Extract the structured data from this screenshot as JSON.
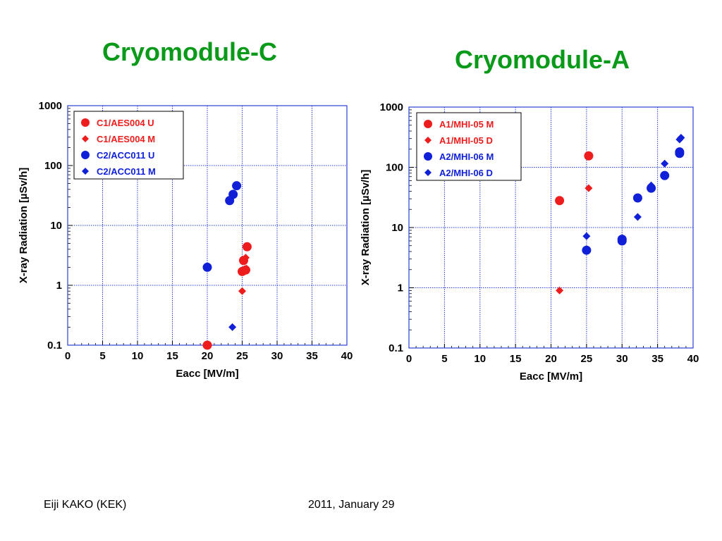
{
  "slide": {
    "title_left": "Cryomodule-C",
    "title_right": "Cryomodule-A",
    "footer_left": "Eiji KAKO (KEK)",
    "footer_right": "2011, January 29"
  },
  "colors": {
    "title": "#0a9a19",
    "red_series": "#ee1c1c",
    "blue_series": "#1020d8",
    "grid": "#2b3fd6"
  },
  "chart_data": [
    {
      "type": "scatter",
      "title": "Cryomodule-C",
      "xlabel": "Eacc  [MV/m]",
      "ylabel": "X-ray Radiation  [µSv/h]",
      "xlim": [
        0,
        40
      ],
      "ylim": [
        0.1,
        1000
      ],
      "yscale": "log",
      "xticks": [
        "0",
        "5",
        "10",
        "15",
        "20",
        "25",
        "30",
        "35",
        "40"
      ],
      "yticks": [
        "0.1",
        "1",
        "10",
        "100",
        "1000"
      ],
      "grid": true,
      "legend_position": "top-left",
      "series": [
        {
          "name": "C1/AES004 U",
          "marker": "circle",
          "color": "#ee1c1c",
          "points": [
            [
              20.0,
              0.1
            ],
            [
              25.0,
              1.7
            ],
            [
              25.2,
              2.6
            ],
            [
              25.5,
              1.8
            ],
            [
              25.7,
              4.4
            ]
          ]
        },
        {
          "name": "C1/AES004 M",
          "marker": "diamond",
          "color": "#ee1c1c",
          "points": [
            [
              25.0,
              0.8
            ],
            [
              25.5,
              2.9
            ],
            [
              25.6,
              1.9
            ]
          ]
        },
        {
          "name": "C2/ACC011 U",
          "marker": "circle",
          "color": "#1020d8",
          "points": [
            [
              20.0,
              2.0
            ],
            [
              23.2,
              26
            ],
            [
              23.7,
              33
            ],
            [
              24.2,
              46
            ]
          ]
        },
        {
          "name": "C2/ACC011 M",
          "marker": "diamond",
          "color": "#1020d8",
          "points": [
            [
              23.6,
              0.2
            ]
          ]
        }
      ]
    },
    {
      "type": "scatter",
      "title": "Cryomodule-A",
      "xlabel": "Eacc  [MV/m]",
      "ylabel": "X-ray Radiation  [µSv/h]",
      "xlim": [
        0,
        40
      ],
      "ylim": [
        0.1,
        1000
      ],
      "yscale": "log",
      "xticks": [
        "0",
        "5",
        "10",
        "15",
        "20",
        "25",
        "30",
        "35",
        "40"
      ],
      "yticks": [
        "0.1",
        "1",
        "10",
        "100",
        "1000"
      ],
      "grid": true,
      "legend_position": "top-left",
      "series": [
        {
          "name": "A1/MHI-05 M",
          "marker": "circle",
          "color": "#ee1c1c",
          "points": [
            [
              21.2,
              28
            ],
            [
              25.3,
              155
            ]
          ]
        },
        {
          "name": "A1/MHI-05 D",
          "marker": "diamond",
          "color": "#ee1c1c",
          "points": [
            [
              21.2,
              0.9
            ],
            [
              25.3,
              45
            ]
          ]
        },
        {
          "name": "A2/MHI-06 M",
          "marker": "circle",
          "color": "#1020d8",
          "points": [
            [
              25.0,
              4.2
            ],
            [
              30.0,
              6.0
            ],
            [
              30.0,
              6.4
            ],
            [
              32.2,
              31
            ],
            [
              34.1,
              45
            ],
            [
              36.0,
              73
            ],
            [
              38.1,
              170
            ],
            [
              38.1,
              180
            ]
          ]
        },
        {
          "name": "A2/MHI-06 D",
          "marker": "diamond",
          "color": "#1020d8",
          "points": [
            [
              25.0,
              7.2
            ],
            [
              32.2,
              15
            ],
            [
              34.1,
              50
            ],
            [
              36.0,
              115
            ],
            [
              38.1,
              290
            ],
            [
              38.3,
              310
            ]
          ]
        }
      ]
    }
  ]
}
